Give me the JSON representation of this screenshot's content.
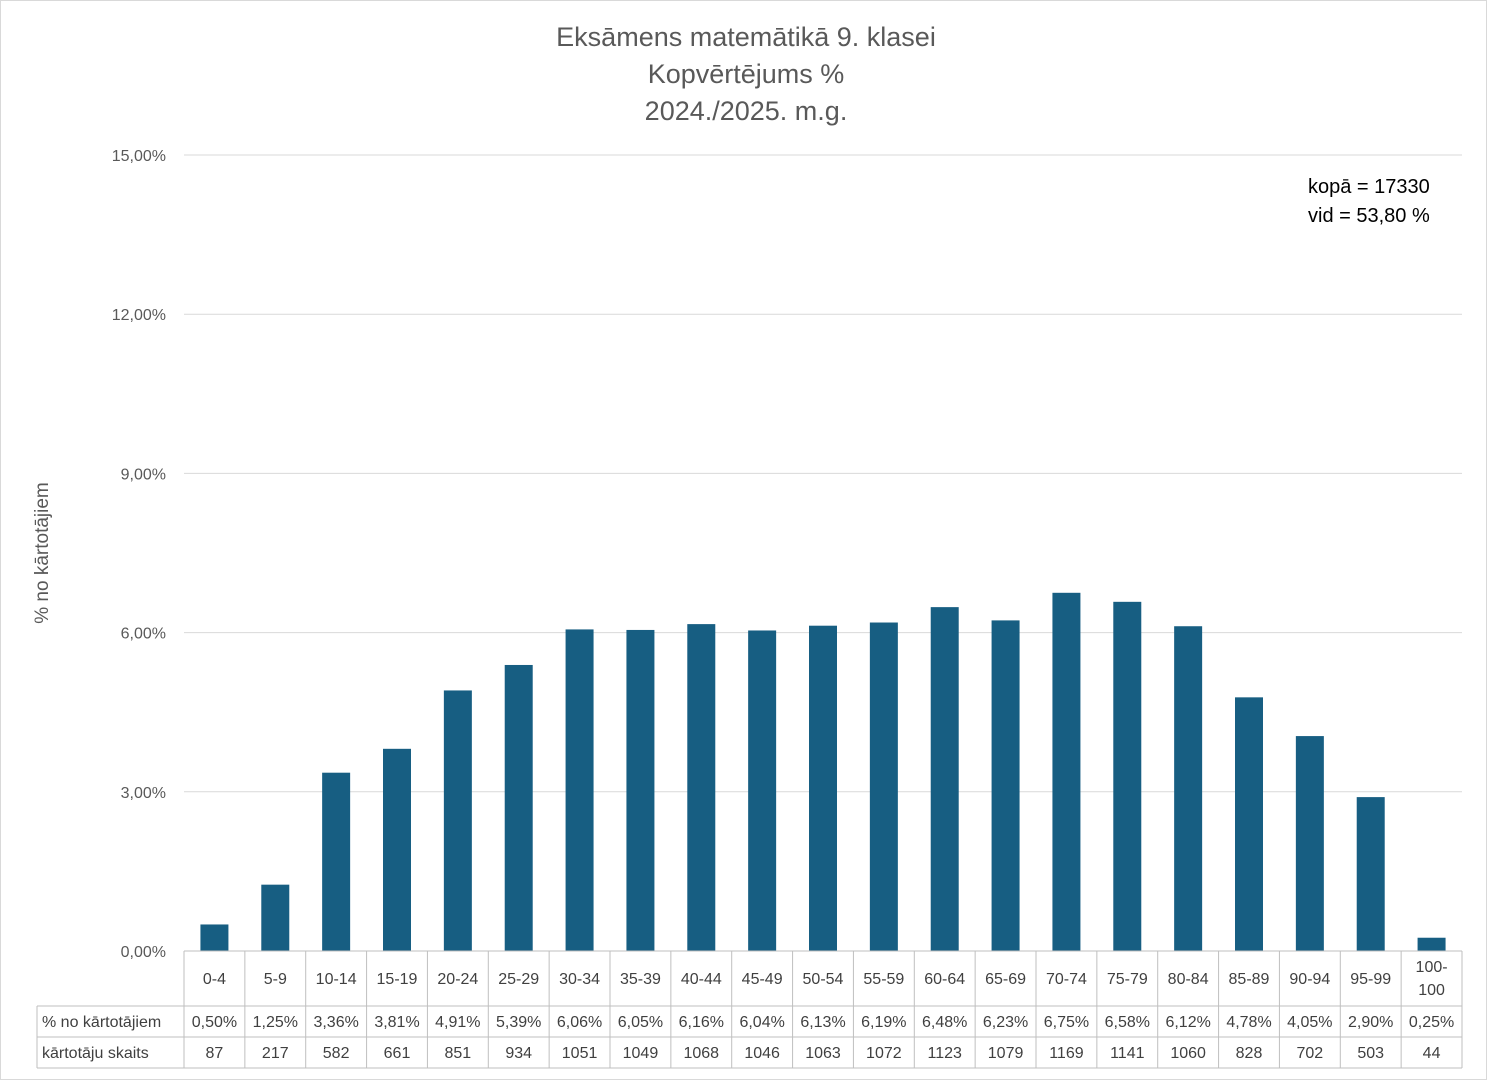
{
  "chart_data": {
    "type": "bar",
    "title": [
      "Eksāmens matemātikā 9. klasei",
      "Kopvērtējums %",
      "2024./2025. m.g."
    ],
    "ylabel": "% no kārtotājiem",
    "ylim": [
      0,
      15
    ],
    "yticks": [
      "0,00%",
      "3,00%",
      "6,00%",
      "9,00%",
      "12,00%",
      "15,00%"
    ],
    "grid": true,
    "color": "#175e82",
    "categories": [
      "0-4",
      "5-9",
      "10-14",
      "15-19",
      "20-24",
      "25-29",
      "30-34",
      "35-39",
      "40-44",
      "45-49",
      "50-54",
      "55-59",
      "60-64",
      "65-69",
      "70-74",
      "75-79",
      "80-84",
      "85-89",
      "90-94",
      "95-99",
      "100-\n100"
    ],
    "values": [
      0.5,
      1.25,
      3.36,
      3.81,
      4.91,
      5.39,
      6.06,
      6.05,
      6.16,
      6.04,
      6.13,
      6.19,
      6.48,
      6.23,
      6.75,
      6.58,
      6.12,
      4.78,
      4.05,
      2.9,
      0.25
    ],
    "table": {
      "row1_label": "% no kārtotājiem",
      "row1": [
        "0,50%",
        "1,25%",
        "3,36%",
        "3,81%",
        "4,91%",
        "5,39%",
        "6,06%",
        "6,05%",
        "6,16%",
        "6,04%",
        "6,13%",
        "6,19%",
        "6,48%",
        "6,23%",
        "6,75%",
        "6,58%",
        "6,12%",
        "4,78%",
        "4,05%",
        "2,90%",
        "0,25%"
      ],
      "row2_label": "kārtotāju skaits",
      "row2": [
        "87",
        "217",
        "582",
        "661",
        "851",
        "934",
        "1051",
        "1049",
        "1068",
        "1046",
        "1063",
        "1072",
        "1123",
        "1079",
        "1169",
        "1141",
        "1060",
        "828",
        "702",
        "503",
        "44"
      ]
    },
    "annotations": [
      "kopā = 17330",
      "vid = 53,80 %"
    ]
  }
}
